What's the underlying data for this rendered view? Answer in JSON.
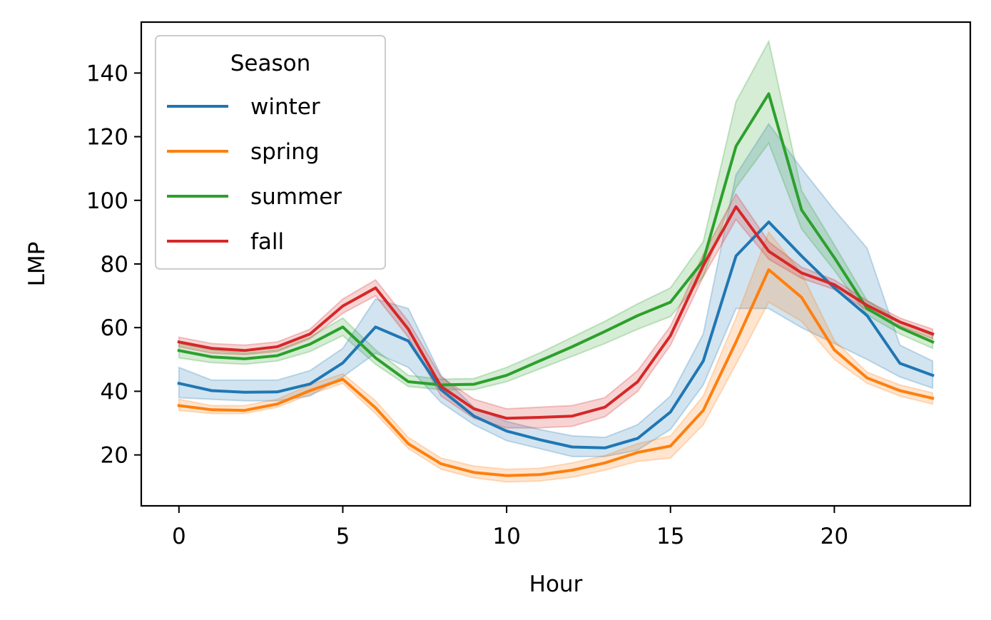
{
  "chart_data": {
    "type": "line",
    "xlabel": "Hour",
    "ylabel": "LMP",
    "xlim": [
      -1.15,
      24.15
    ],
    "ylim": [
      4,
      156
    ],
    "xticks": [
      0,
      5,
      10,
      15,
      20
    ],
    "yticks": [
      20,
      40,
      60,
      80,
      100,
      120,
      140
    ],
    "grid": false,
    "legend": {
      "title": "Season",
      "position": "top-left"
    },
    "x": [
      0,
      1,
      2,
      3,
      4,
      5,
      6,
      7,
      8,
      9,
      10,
      11,
      12,
      13,
      14,
      15,
      16,
      17,
      18,
      19,
      20,
      21,
      22,
      23
    ],
    "series": [
      {
        "name": "winter",
        "color": "#1f77b4",
        "values": [
          42.5,
          40.2,
          39.7,
          39.8,
          42.3,
          48.9,
          60.2,
          55.8,
          40.5,
          32.2,
          27.5,
          24.8,
          22.5,
          22.2,
          25.2,
          33.5,
          49.5,
          82.5,
          93.2,
          82.5,
          72.5,
          63.8,
          48.8,
          45.0
        ],
        "ci_low": [
          38.0,
          37.5,
          37.0,
          37.0,
          38.5,
          44.5,
          52.0,
          47.5,
          36.5,
          29.5,
          24.5,
          22.0,
          19.5,
          19.5,
          21.5,
          28.0,
          42.0,
          66.0,
          66.0,
          60.0,
          55.0,
          50.0,
          44.5,
          41.0
        ],
        "ci_high": [
          47.5,
          43.5,
          43.5,
          43.5,
          46.5,
          53.5,
          69.0,
          66.0,
          45.0,
          35.0,
          30.5,
          28.0,
          26.0,
          25.5,
          29.5,
          38.5,
          58.0,
          108.0,
          124.0,
          110.0,
          97.0,
          85.0,
          54.5,
          49.5
        ]
      },
      {
        "name": "spring",
        "color": "#ff7f0e",
        "values": [
          35.5,
          34.2,
          34.0,
          36.0,
          40.2,
          43.8,
          34.8,
          23.5,
          17.2,
          14.5,
          13.5,
          13.8,
          15.2,
          17.5,
          20.8,
          22.8,
          34.0,
          55.5,
          78.2,
          69.5,
          53.0,
          44.2,
          40.2,
          37.8
        ],
        "ci_low": [
          34.0,
          33.0,
          33.0,
          35.0,
          39.0,
          42.5,
          33.0,
          22.0,
          15.5,
          12.8,
          11.5,
          11.8,
          13.0,
          15.2,
          18.0,
          19.0,
          29.5,
          48.5,
          68.0,
          62.0,
          50.0,
          42.5,
          38.5,
          36.0
        ],
        "ci_high": [
          37.5,
          35.5,
          35.5,
          37.5,
          42.0,
          45.5,
          37.0,
          25.5,
          19.0,
          16.5,
          15.5,
          15.8,
          17.5,
          19.8,
          23.5,
          26.0,
          38.5,
          63.0,
          90.0,
          77.0,
          56.0,
          46.0,
          42.0,
          39.5
        ]
      },
      {
        "name": "summer",
        "color": "#2ca02c",
        "values": [
          52.8,
          50.8,
          50.2,
          51.2,
          54.8,
          60.2,
          50.5,
          43.0,
          42.0,
          42.2,
          45.0,
          49.5,
          54.0,
          58.8,
          63.8,
          68.0,
          81.0,
          117.0,
          133.5,
          97.0,
          82.0,
          66.0,
          60.0,
          55.5
        ],
        "ci_low": [
          50.5,
          49.0,
          48.5,
          49.5,
          52.5,
          57.5,
          48.5,
          41.5,
          40.5,
          40.5,
          43.0,
          47.0,
          51.0,
          55.0,
          59.5,
          63.5,
          76.0,
          104.0,
          118.0,
          91.0,
          78.0,
          64.0,
          58.0,
          53.5
        ],
        "ci_high": [
          55.0,
          53.0,
          52.0,
          53.0,
          57.0,
          63.0,
          53.0,
          45.0,
          43.8,
          44.0,
          47.5,
          52.0,
          57.0,
          62.0,
          67.5,
          72.5,
          87.0,
          131.0,
          150.0,
          103.0,
          86.0,
          68.5,
          62.0,
          57.5
        ]
      },
      {
        "name": "fall",
        "color": "#d62728",
        "values": [
          55.5,
          53.5,
          52.8,
          54.0,
          58.0,
          66.8,
          72.5,
          59.5,
          41.5,
          34.5,
          31.5,
          31.8,
          32.2,
          35.0,
          43.0,
          57.5,
          79.5,
          98.0,
          84.0,
          77.2,
          73.5,
          67.0,
          61.8,
          58.0
        ],
        "ci_low": [
          54.0,
          52.0,
          51.5,
          52.5,
          56.5,
          64.5,
          70.0,
          57.0,
          38.5,
          31.5,
          28.5,
          28.5,
          29.0,
          32.0,
          40.0,
          54.5,
          76.0,
          94.0,
          81.5,
          75.5,
          72.0,
          65.5,
          60.5,
          56.5
        ],
        "ci_high": [
          57.0,
          55.0,
          54.5,
          55.5,
          59.5,
          69.0,
          75.0,
          62.0,
          44.5,
          37.5,
          34.5,
          35.0,
          35.5,
          38.0,
          46.5,
          60.5,
          83.0,
          102.0,
          87.0,
          79.0,
          75.0,
          68.5,
          63.0,
          59.5
        ]
      }
    ]
  }
}
